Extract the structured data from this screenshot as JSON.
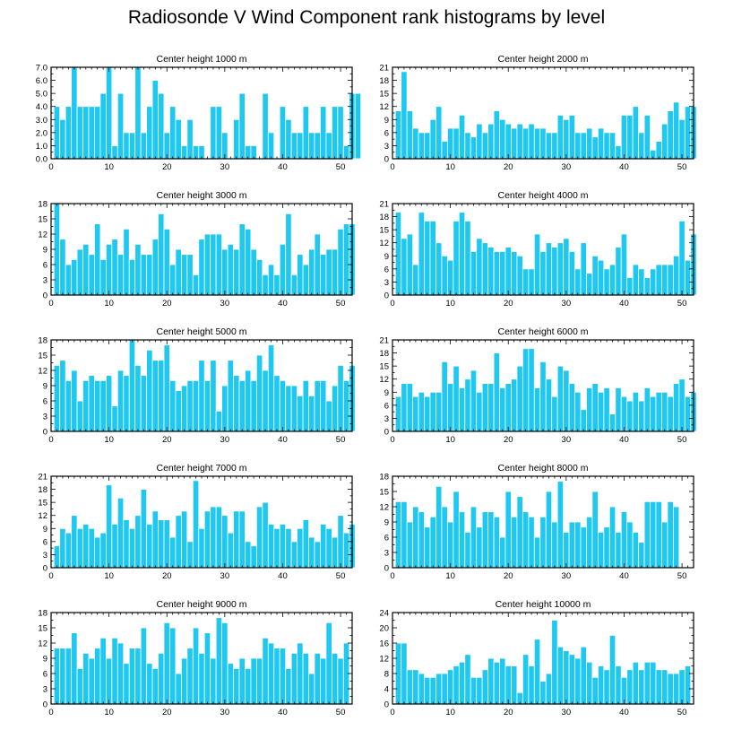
{
  "title": "Radiosonde V Wind Component rank histograms by level",
  "colors": {
    "bar": "#1ec8f0",
    "bar_edge": "#ffffff",
    "axis": "#000000"
  },
  "chart_data": [
    {
      "type": "bar",
      "title": "Center height 1000 m",
      "xlim": [
        0,
        52
      ],
      "xticks": [
        0,
        10,
        20,
        30,
        40,
        50
      ],
      "ylim": [
        0,
        7
      ],
      "yticks": [
        0,
        1,
        2,
        3,
        4,
        5,
        6,
        7
      ],
      "ytick_labels": [
        "0.0",
        "1.0",
        "2.0",
        "3.0",
        "4.0",
        "5.0",
        "6.0",
        "7.0"
      ],
      "values": [
        4,
        3,
        4,
        7,
        4,
        4,
        4,
        4,
        5,
        7,
        1,
        5,
        2,
        2,
        7,
        2,
        4,
        6,
        5,
        2,
        4,
        3,
        1,
        3,
        1,
        1,
        0,
        4,
        4,
        2,
        0,
        3,
        5,
        1,
        1,
        0,
        5,
        2,
        0,
        4,
        3,
        2,
        2,
        4,
        2,
        2,
        4,
        2,
        4,
        4,
        1,
        5,
        5
      ]
    },
    {
      "type": "bar",
      "title": "Center height 2000 m",
      "xlim": [
        0,
        52
      ],
      "xticks": [
        0,
        10,
        20,
        30,
        40,
        50
      ],
      "ylim": [
        0,
        21
      ],
      "yticks": [
        0,
        3,
        6,
        9,
        12,
        15,
        18,
        21
      ],
      "ytick_labels": [
        "0",
        "3",
        "6",
        "9",
        "12",
        "15",
        "18",
        "21"
      ],
      "values": [
        11,
        20,
        11,
        7,
        6,
        6,
        9,
        12,
        4,
        7,
        7,
        10,
        6,
        5,
        8,
        6,
        8,
        11,
        9,
        8,
        7,
        8,
        7,
        8,
        7,
        7,
        6,
        6,
        10,
        9,
        10,
        6,
        6,
        7,
        5,
        7,
        6,
        6,
        3,
        10,
        10,
        12,
        6,
        10,
        2,
        4,
        8,
        11,
        13,
        9,
        12,
        12
      ]
    },
    {
      "type": "bar",
      "title": "Center height 3000 m",
      "xlim": [
        0,
        52
      ],
      "xticks": [
        0,
        10,
        20,
        30,
        40,
        50
      ],
      "ylim": [
        0,
        18
      ],
      "yticks": [
        0,
        3,
        6,
        9,
        12,
        15,
        18
      ],
      "ytick_labels": [
        "0",
        "3",
        "6",
        "9",
        "12",
        "15",
        "18"
      ],
      "values": [
        18,
        11,
        6,
        7,
        9,
        10,
        8,
        14,
        7,
        10,
        11,
        8,
        13,
        7,
        10,
        8,
        8,
        11,
        16,
        13,
        6,
        9,
        8,
        8,
        4,
        11,
        12,
        12,
        12,
        9,
        10,
        9,
        14,
        13,
        9,
        7,
        4,
        6,
        4,
        10,
        16,
        4,
        8,
        6,
        9,
        12,
        8,
        9,
        9,
        13,
        14,
        14
      ]
    },
    {
      "type": "bar",
      "title": "Center height 4000 m",
      "xlim": [
        0,
        52
      ],
      "xticks": [
        0,
        10,
        20,
        30,
        40,
        50
      ],
      "ylim": [
        0,
        21
      ],
      "yticks": [
        0,
        3,
        6,
        9,
        12,
        15,
        18,
        21
      ],
      "ytick_labels": [
        "0",
        "3",
        "6",
        "9",
        "12",
        "15",
        "18",
        "21"
      ],
      "values": [
        19,
        13,
        14,
        7,
        19,
        17,
        17,
        12,
        9,
        8,
        17,
        19,
        17,
        10,
        13,
        12,
        11,
        10,
        10,
        11,
        10,
        9,
        6,
        6,
        14,
        10,
        12,
        11,
        12,
        13,
        10,
        6,
        12,
        5,
        9,
        8,
        6,
        7,
        11,
        14,
        4,
        7,
        6,
        4,
        6,
        7,
        7,
        7,
        9,
        17,
        8,
        14
      ]
    },
    {
      "type": "bar",
      "title": "Center height 5000 m",
      "xlim": [
        0,
        52
      ],
      "xticks": [
        0,
        10,
        20,
        30,
        40,
        50
      ],
      "ylim": [
        0,
        18
      ],
      "yticks": [
        0,
        3,
        6,
        9,
        12,
        15,
        18
      ],
      "ytick_labels": [
        "0",
        "3",
        "6",
        "9",
        "12",
        "15",
        "18"
      ],
      "values": [
        13,
        14,
        10,
        12,
        6,
        10,
        11,
        10,
        10,
        11,
        5,
        12,
        11,
        18,
        13,
        11,
        16,
        14,
        14,
        17,
        10,
        8,
        9,
        10,
        10,
        14,
        10,
        14,
        4,
        9,
        14,
        11,
        10,
        12,
        10,
        15,
        12,
        17,
        11,
        10,
        9,
        9,
        7,
        10,
        7,
        10,
        10,
        6,
        9,
        13,
        10,
        13
      ]
    },
    {
      "type": "bar",
      "title": "Center height 6000 m",
      "xlim": [
        0,
        52
      ],
      "xticks": [
        0,
        10,
        20,
        30,
        40,
        50
      ],
      "ylim": [
        0,
        21
      ],
      "yticks": [
        0,
        3,
        6,
        9,
        12,
        15,
        18,
        21
      ],
      "ytick_labels": [
        "0",
        "3",
        "6",
        "9",
        "12",
        "15",
        "18",
        "21"
      ],
      "values": [
        8,
        11,
        11,
        8,
        9,
        8,
        9,
        9,
        16,
        11,
        15,
        10,
        12,
        14,
        9,
        11,
        11,
        18,
        10,
        11,
        12,
        15,
        19,
        19,
        10,
        16,
        12,
        8,
        15,
        14,
        11,
        9,
        5,
        10,
        11,
        9,
        10,
        4,
        10,
        8,
        7,
        9,
        7,
        10,
        8,
        9,
        9,
        8,
        11,
        12,
        8,
        9
      ]
    },
    {
      "type": "bar",
      "title": "Center height 7000 m",
      "xlim": [
        0,
        52
      ],
      "xticks": [
        0,
        10,
        20,
        30,
        40,
        50
      ],
      "ylim": [
        0,
        21
      ],
      "yticks": [
        0,
        3,
        6,
        9,
        12,
        15,
        18,
        21
      ],
      "ytick_labels": [
        "0",
        "3",
        "6",
        "9",
        "12",
        "15",
        "18",
        "21"
      ],
      "values": [
        5,
        9,
        8,
        12,
        9,
        10,
        9,
        7,
        8,
        19,
        10,
        16,
        11,
        9,
        12,
        18,
        10,
        13,
        11,
        11,
        7,
        12,
        13,
        6,
        20,
        9,
        13,
        14,
        14,
        12,
        8,
        13,
        13,
        6,
        5,
        14,
        15,
        10,
        9,
        10,
        9,
        6,
        9,
        11,
        7,
        6,
        10,
        9,
        7,
        12,
        8,
        10
      ]
    },
    {
      "type": "bar",
      "title": "Center height 8000 m",
      "xlim": [
        0,
        52
      ],
      "xticks": [
        0,
        10,
        20,
        30,
        40,
        50
      ],
      "ylim": [
        0,
        18
      ],
      "yticks": [
        0,
        3,
        6,
        9,
        12,
        15,
        18
      ],
      "ytick_labels": [
        "0",
        "3",
        "6",
        "9",
        "12",
        "15",
        "18"
      ],
      "values": [
        13,
        13,
        9,
        12,
        11,
        8,
        10,
        16,
        12,
        9,
        15,
        11,
        7,
        12,
        8,
        11,
        11,
        10,
        6,
        15,
        10,
        14,
        11,
        10,
        6,
        10,
        15,
        9,
        17,
        7,
        9,
        9,
        8,
        10,
        15,
        7,
        8,
        12,
        7,
        11,
        9,
        7,
        5,
        13,
        13,
        13,
        9,
        13,
        12
      ]
    },
    {
      "type": "bar",
      "title": "Center height 9000 m",
      "xlim": [
        0,
        52
      ],
      "xticks": [
        0,
        10,
        20,
        30,
        40,
        50
      ],
      "ylim": [
        0,
        18
      ],
      "yticks": [
        0,
        3,
        6,
        9,
        12,
        15,
        18
      ],
      "ytick_labels": [
        "0",
        "3",
        "6",
        "9",
        "12",
        "15",
        "18"
      ],
      "values": [
        11,
        11,
        11,
        14,
        7,
        10,
        9,
        11,
        13,
        9,
        13,
        12,
        8,
        11,
        11,
        15,
        8,
        7,
        10,
        16,
        15,
        6,
        9,
        11,
        15,
        10,
        14,
        9,
        17,
        16,
        8,
        7,
        9,
        7,
        9,
        9,
        13,
        12,
        11,
        11,
        7,
        10,
        12,
        10,
        6,
        10,
        9,
        16,
        10,
        9,
        12
      ]
    },
    {
      "type": "bar",
      "title": "Center height 10000 m",
      "xlim": [
        0,
        52
      ],
      "xticks": [
        0,
        10,
        20,
        30,
        40,
        50
      ],
      "ylim": [
        0,
        24
      ],
      "yticks": [
        0,
        4,
        8,
        12,
        16,
        20,
        24
      ],
      "ytick_labels": [
        "0",
        "4",
        "8",
        "12",
        "16",
        "20",
        "24"
      ],
      "values": [
        16,
        16,
        9,
        9,
        8,
        7,
        7,
        8,
        8,
        9,
        10,
        11,
        13,
        7,
        7,
        9,
        12,
        11,
        12,
        10,
        10,
        3,
        13,
        10,
        17,
        6,
        8,
        22,
        15,
        14,
        13,
        12,
        15,
        11,
        7,
        10,
        9,
        18,
        10,
        7,
        9,
        11,
        9,
        11,
        11,
        9,
        9,
        8,
        8,
        9,
        10
      ]
    }
  ]
}
